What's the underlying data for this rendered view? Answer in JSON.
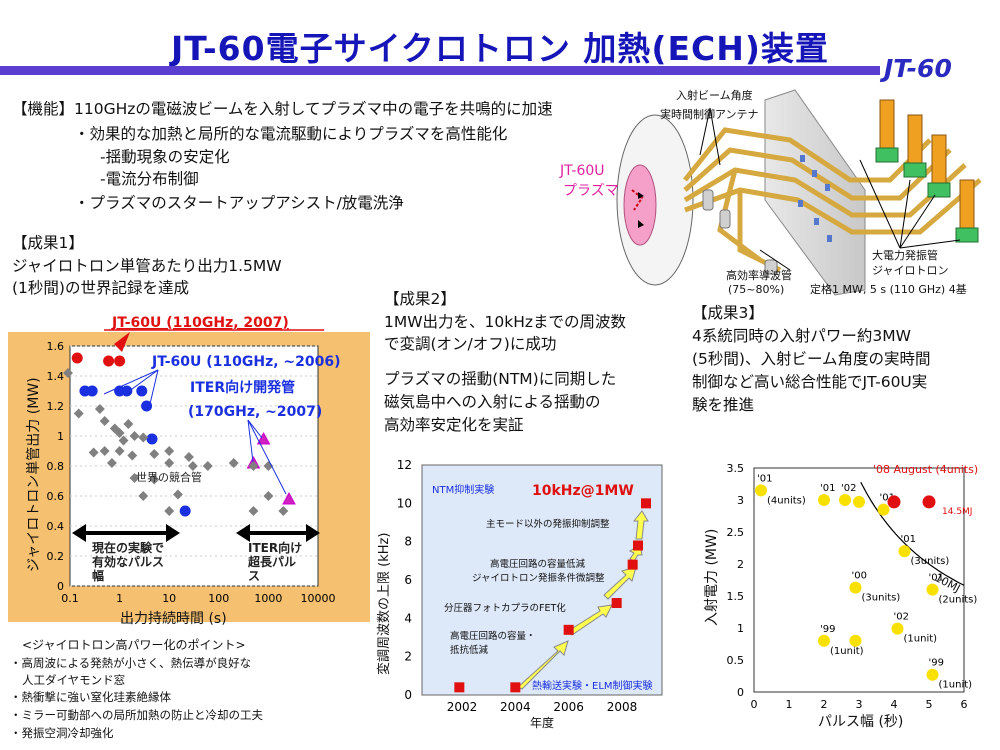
{
  "title": "JT-60電子サイクロトロン 加熱(ECH)装置",
  "badge": "JT-60",
  "function": {
    "line1": "【機能】110GHzの電磁波ビームを入射してプラズマ中の電子を共鳴的に加速",
    "line2": "・効果的な加熱と局所的な電流駆動によりプラズマを高性能化",
    "line3": "-揺動現象の安定化",
    "line4": "-電流分布制御",
    "line5": "・プラズマのスタートアップアシスト/放電洗浄"
  },
  "diagram": {
    "antenna_label_1": "入射ビーム角度",
    "antenna_label_2": "実時間制御アンテナ",
    "plasma_label_1": "JT-60U",
    "plasma_label_2": "プラズマ",
    "gyrotron_label_1": "大電力発振管",
    "gyrotron_label_2": "ジャイロトロン",
    "waveguide_label_1": "高効率導波管",
    "waveguide_label_2": "(75~80%)",
    "rating": "定格1 MW, 5 s (110 GHz) 4基"
  },
  "result1": {
    "heading": "【成果1】",
    "line1": "ジャイロトロン単管あたり出力1.5MW",
    "line2": "(1秒間)の世界記録を達成"
  },
  "result2": {
    "heading": "【成果2】",
    "line1": "1MW出力を、10kHzまでの周波数",
    "line2": "で変調(オン/オフ)に成功",
    "line3": "プラズマの揺動(NTM)に同期した",
    "line4": "磁気島中への入射による揺動の",
    "line5": "高効率安定化を実証"
  },
  "result3": {
    "heading": "【成果3】",
    "line1": "4系統同時の入射パワー約3MW",
    "line2": "(5秒間)、入射ビーム角度の実時間",
    "line3": "制御など高い総合性能でJT-60U実",
    "line4": "験を推進"
  },
  "points": {
    "heading": "<ジャイロトロン高パワー化のポイント>",
    "line1": "・高周波による発熱が小さく、熱伝導が良好な",
    "line2": "人工ダイヤモンド窓",
    "line3": "・熱衝撃に強い窒化珪素絶縁体",
    "line4": "・ミラー可動部への局所加熱の防止と冷却の工夫",
    "line5": "・発振空洞冷却強化"
  },
  "chart_data": [
    {
      "type": "scatter",
      "title": "",
      "xlabel": "出力持続時間 (s)",
      "ylabel": "ジャイロトロン単管出力 (MW)",
      "xscale": "log",
      "xlim": [
        0.1,
        10000
      ],
      "ylim": [
        0,
        1.6
      ],
      "xticks": [
        "0.1",
        "1",
        "10",
        "100",
        "1000",
        "10000"
      ],
      "yticks": [
        "0",
        "0.2",
        "0.4",
        "0.6",
        "0.8",
        "1",
        "1.2",
        "1.4",
        "1.6"
      ],
      "colors": {
        "jt60u_2007": "#e01010",
        "jt60u_2006": "#1a30e0",
        "iter": "#d020c0",
        "others": "#808080",
        "background": "#f5c070"
      },
      "annotations": {
        "jt60u_2007": "JT-60U (110GHz, 2007)",
        "jt60u_2006": "JT-60U (110GHz, ~2006)",
        "iter_1": "ITER向け開発管",
        "iter_2": "(170GHz, ~2007)",
        "competition": "世界の競合管",
        "current_1": "現在の実験で",
        "current_2": "有効なパルス",
        "current_3": "幅",
        "iter_pulse_1": "ITER向け",
        "iter_pulse_2": "超長パル",
        "iter_pulse_3": "ス"
      },
      "series": [
        {
          "name": "JT-60U (110GHz, 2007)",
          "points": [
            [
              0.14,
              1.52
            ],
            [
              0.6,
              1.5
            ],
            [
              1.0,
              1.5
            ]
          ]
        },
        {
          "name": "JT-60U (110GHz, ~2006)",
          "points": [
            [
              0.2,
              1.3
            ],
            [
              0.28,
              1.3
            ],
            [
              1.0,
              1.3
            ],
            [
              1.4,
              1.3
            ],
            [
              2.8,
              1.3
            ],
            [
              3.5,
              1.2
            ],
            [
              4.5,
              0.98
            ],
            [
              21,
              0.5
            ]
          ]
        },
        {
          "name": "ITER向け開発管 (170GHz, ~2007)",
          "points": [
            [
              800,
              0.98
            ],
            [
              500,
              0.82
            ],
            [
              2600,
              0.58
            ]
          ]
        },
        {
          "name": "世界の競合管",
          "points": [
            [
              0.08,
              1.42
            ],
            [
              0.15,
              1.15
            ],
            [
              0.4,
              1.18
            ],
            [
              0.5,
              1.1
            ],
            [
              0.8,
              1.05
            ],
            [
              1.0,
              1.02
            ],
            [
              1.5,
              1.08
            ],
            [
              2.0,
              1.0
            ],
            [
              3.0,
              0.99
            ],
            [
              1.2,
              0.97
            ],
            [
              0.5,
              0.9
            ],
            [
              1.0,
              0.9
            ],
            [
              0.3,
              0.89
            ],
            [
              0.7,
              0.82
            ],
            [
              1.8,
              0.87
            ],
            [
              5.0,
              0.88
            ],
            [
              10,
              0.9
            ],
            [
              25,
              0.86
            ],
            [
              10,
              0.82
            ],
            [
              30,
              0.8
            ],
            [
              60,
              0.8
            ],
            [
              200,
              0.82
            ],
            [
              500,
              0.8
            ],
            [
              1000,
              0.8
            ],
            [
              2.0,
              0.72
            ],
            [
              5.0,
              0.71
            ],
            [
              3.0,
              0.6
            ],
            [
              15,
              0.61
            ],
            [
              1000,
              0.6
            ],
            [
              10,
              0.5
            ],
            [
              500,
              0.5
            ],
            [
              2000,
              0.5
            ]
          ]
        }
      ]
    },
    {
      "type": "scatter",
      "title": "",
      "xlabel": "年度",
      "ylabel": "変調周波数の上限 (kHz)",
      "xlim": [
        2000.5,
        2009.5
      ],
      "ylim": [
        0,
        12
      ],
      "xticks": [
        "2002",
        "2004",
        "2006",
        "2008"
      ],
      "yticks": [
        "0",
        "2",
        "4",
        "6",
        "8",
        "10",
        "12"
      ],
      "colors": {
        "marker": "#e01010",
        "arrow": "#ffff50",
        "background": "#dde8f8"
      },
      "annotations": {
        "headline": "10kHz@1MW",
        "ntm": "NTM抑制実験",
        "elm": "熱輸送実験・ELM制御実験",
        "step1_1": "高電圧回路の容量・",
        "step1_2": "抵抗低減",
        "step2": "分圧器フォトカプラのFET化",
        "step3_1": "高電圧回路の容量低減",
        "step3_2": "ジャイロトロン発振条件微調整",
        "step4": "主モード以外の発振抑制調整"
      },
      "series": [
        {
          "name": "",
          "x": [
            2001.9,
            2004.0,
            2006.0,
            2007.8,
            2008.4,
            2008.6,
            2008.9
          ],
          "y": [
            0.4,
            0.4,
            3.4,
            4.8,
            6.8,
            7.8,
            10.0
          ]
        }
      ]
    },
    {
      "type": "scatter",
      "title": "",
      "xlabel": "パルス幅 (秒)",
      "ylabel": "入射電力 (MW)",
      "xlim": [
        0,
        6
      ],
      "ylim": [
        0,
        3.5
      ],
      "xticks": [
        "0",
        "1",
        "2",
        "3",
        "4",
        "5",
        "6"
      ],
      "yticks": [
        "0",
        "0.5",
        "1",
        "1.5",
        "2",
        "2.5",
        "3",
        "3.5"
      ],
      "colors": {
        "historic": "#f8e000",
        "recent": "#e01010",
        "curve": "#000000"
      },
      "curve_label": "10MJ",
      "series": [
        {
          "name": "",
          "points": [
            [
              0.2,
              3.15
            ],
            [
              2.0,
              3.0
            ],
            [
              2.6,
              3.0
            ],
            [
              3.0,
              2.97
            ],
            [
              3.7,
              2.85
            ],
            [
              2.9,
              1.63
            ],
            [
              4.3,
              2.2
            ],
            [
              5.1,
              1.6
            ],
            [
              4.1,
              0.99
            ],
            [
              2.0,
              0.8
            ],
            [
              2.9,
              0.8
            ],
            [
              5.1,
              0.27
            ]
          ],
          "labels": [
            "'01 (4units)",
            "'01",
            "'02",
            "",
            "'01",
            "'00 (3units)",
            "'01 (3units)",
            "'01 (2units)",
            "'02 (1unit)",
            "'99 (1unit)",
            "",
            "'99 (1unit)"
          ]
        },
        {
          "name": "'08 August (4units)",
          "points": [
            [
              4.0,
              2.97
            ],
            [
              5.0,
              2.97
            ]
          ],
          "annotation": "14.5MJ"
        }
      ]
    }
  ]
}
